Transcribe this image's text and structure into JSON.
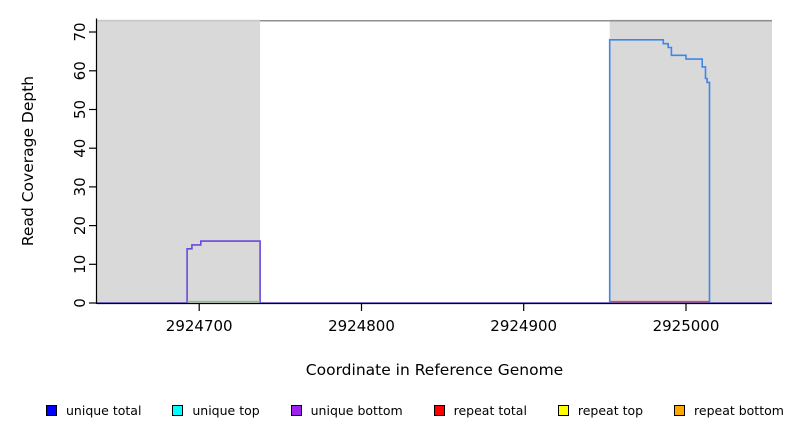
{
  "figure": {
    "xlabel": "Coordinate in Reference Genome",
    "ylabel": "Read Coverage Depth"
  },
  "legend": {
    "items": [
      {
        "id": "unique-total",
        "label": "unique total",
        "color": "#0000ff"
      },
      {
        "id": "unique-top",
        "label": "unique top",
        "color": "#00ffff"
      },
      {
        "id": "unique-bottom",
        "label": "unique bottom",
        "color": "#a020f0"
      },
      {
        "id": "repeat-total",
        "label": "repeat total",
        "color": "#ff0000"
      },
      {
        "id": "repeat-top",
        "label": "repeat top",
        "color": "#ffff00"
      },
      {
        "id": "repeat-bottom",
        "label": "repeat bottom",
        "color": "#ffa500"
      }
    ]
  },
  "chart_data": {
    "type": "line",
    "title": "",
    "xlabel": "Coordinate in Reference Genome",
    "ylabel": "Read Coverage Depth",
    "xlim": [
      2924637,
      2925053
    ],
    "ylim": [
      0,
      73.5
    ],
    "x_ticks": [
      2924700,
      2924800,
      2924900,
      2925000
    ],
    "y_ticks": [
      0,
      10,
      20,
      30,
      40,
      50,
      60,
      70
    ],
    "grid": false,
    "legend_position": "bottom",
    "background_color": "#ffffff",
    "shaded_region_color": "#d9d9d9",
    "shaded_regions": [
      {
        "x1": 2924637,
        "x2": 2924737.5,
        "y1": 0,
        "y2": 73.2
      },
      {
        "x1": 2924953,
        "x2": 2925053,
        "y1": 0,
        "y2": 73.2
      }
    ],
    "overlay_lines": [
      {
        "id": "region-top-border-left",
        "x1": 2924637,
        "x2": 2924737.5,
        "depth": 72.9,
        "color": "#c2c2c2",
        "width": 1.2
      },
      {
        "id": "region-top-border-right",
        "x1": 2924737.5,
        "x2": 2925053,
        "depth": 72.9,
        "color": "#8f8f8f",
        "width": 1.5
      }
    ],
    "series": [
      {
        "id": "unique-coverage-left-peak",
        "color": "#6a48dd",
        "width": 1.6,
        "points": [
          [
            2924637,
            0
          ],
          [
            2924692.5,
            0
          ],
          [
            2924692.5,
            14
          ],
          [
            2924695.5,
            14
          ],
          [
            2924695.5,
            15
          ],
          [
            2924701,
            15
          ],
          [
            2924701,
            16
          ],
          [
            2924737.5,
            16
          ],
          [
            2924737.5,
            0
          ],
          [
            2925053,
            0
          ]
        ]
      },
      {
        "id": "left-block-zero-line",
        "color": "#7cc87d",
        "width": 1.4,
        "points": [
          [
            2924692.5,
            0.35
          ],
          [
            2924737.5,
            0.35
          ]
        ]
      },
      {
        "id": "repeat-total-zero-line",
        "color": "#ee4050",
        "width": 1.4,
        "points": [
          [
            2924953,
            0.35
          ],
          [
            2925014.5,
            0.35
          ]
        ]
      },
      {
        "id": "unique-coverage-right-peak",
        "color": "#3f86ec",
        "width": 1.6,
        "points": [
          [
            2924953,
            0
          ],
          [
            2924953,
            68
          ],
          [
            2924986,
            68
          ],
          [
            2924986,
            67
          ],
          [
            2924989,
            67
          ],
          [
            2924989,
            66
          ],
          [
            2924991,
            66
          ],
          [
            2924991,
            64
          ],
          [
            2925000,
            64
          ],
          [
            2925000,
            63
          ],
          [
            2925010,
            63
          ],
          [
            2925010,
            61
          ],
          [
            2925012,
            61
          ],
          [
            2925012,
            58
          ],
          [
            2925013,
            58
          ],
          [
            2925013,
            57
          ],
          [
            2925014.5,
            57
          ],
          [
            2925014.5,
            0
          ]
        ]
      }
    ]
  }
}
